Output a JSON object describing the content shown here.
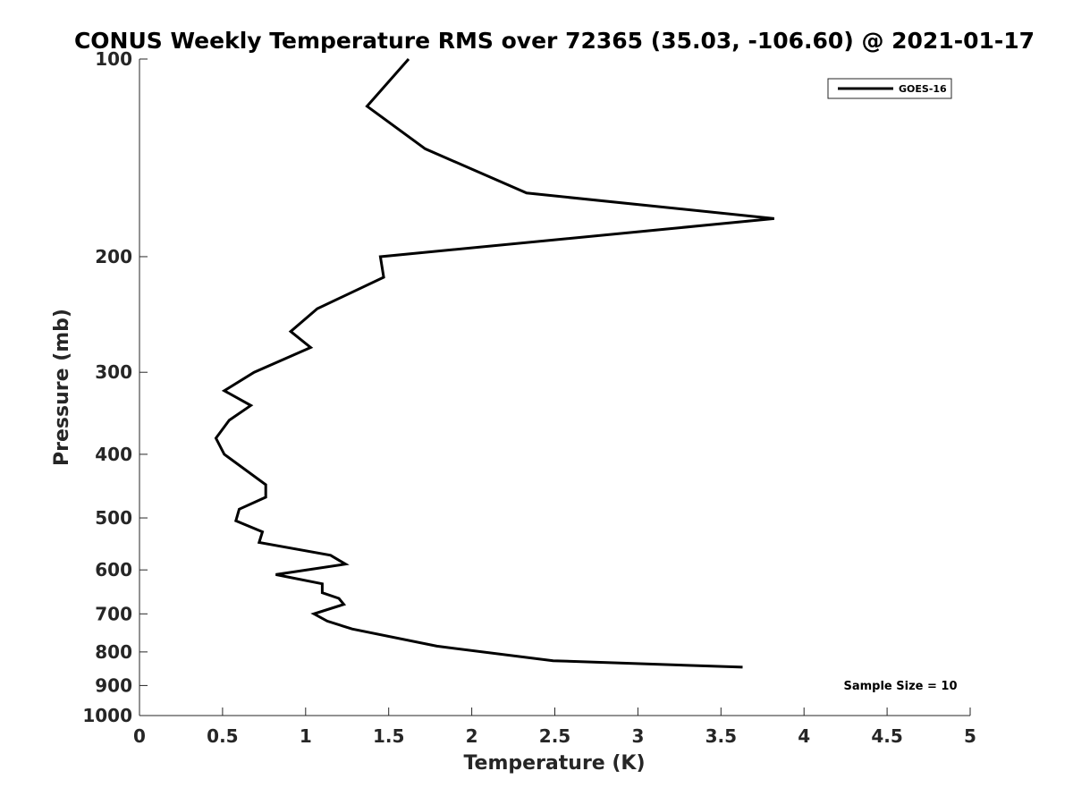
{
  "chart_data": {
    "type": "line",
    "title": "CONUS Weekly Temperature RMS over 72365 (35.03, -106.60) @ 2021-01-17",
    "xlabel": "Temperature (K)",
    "ylabel": "Pressure (mb)",
    "xlim": [
      0,
      5
    ],
    "ylim": [
      100,
      1000
    ],
    "y_scale": "log",
    "y_reversed": true,
    "x_ticks": [
      0,
      0.5,
      1,
      1.5,
      2,
      2.5,
      3,
      3.5,
      4,
      4.5,
      5
    ],
    "x_tick_labels": [
      "0",
      "0.5",
      "1",
      "1.5",
      "2",
      "2.5",
      "3",
      "3.5",
      "4",
      "4.5",
      "5"
    ],
    "y_ticks": [
      100,
      200,
      300,
      400,
      500,
      600,
      700,
      800,
      900,
      1000
    ],
    "y_tick_labels": [
      "100",
      "200",
      "300",
      "400",
      "500",
      "600",
      "700",
      "800",
      "900",
      "1000"
    ],
    "grid": false,
    "legend_position": "top-right",
    "annotation": "Sample Size = 10",
    "series": [
      {
        "name": "GOES-16",
        "color": "#000000",
        "points": [
          [
            1.62,
            100
          ],
          [
            1.37,
            118
          ],
          [
            1.72,
            137
          ],
          [
            2.33,
            160
          ],
          [
            3.82,
            175
          ],
          [
            1.45,
            200
          ],
          [
            1.47,
            215
          ],
          [
            1.07,
            240
          ],
          [
            0.91,
            260
          ],
          [
            1.03,
            275
          ],
          [
            0.69,
            300
          ],
          [
            0.51,
            320
          ],
          [
            0.67,
            337
          ],
          [
            0.54,
            355
          ],
          [
            0.46,
            378
          ],
          [
            0.51,
            400
          ],
          [
            0.76,
            445
          ],
          [
            0.76,
            465
          ],
          [
            0.6,
            485
          ],
          [
            0.58,
            505
          ],
          [
            0.74,
            525
          ],
          [
            0.72,
            545
          ],
          [
            1.15,
            570
          ],
          [
            1.24,
            588
          ],
          [
            0.82,
            610
          ],
          [
            1.1,
            630
          ],
          [
            1.1,
            650
          ],
          [
            1.2,
            663
          ],
          [
            1.23,
            677
          ],
          [
            1.05,
            700
          ],
          [
            1.13,
            718
          ],
          [
            1.28,
            738
          ],
          [
            1.79,
            784
          ],
          [
            2.49,
            825
          ],
          [
            3.63,
            844
          ]
        ]
      }
    ]
  }
}
